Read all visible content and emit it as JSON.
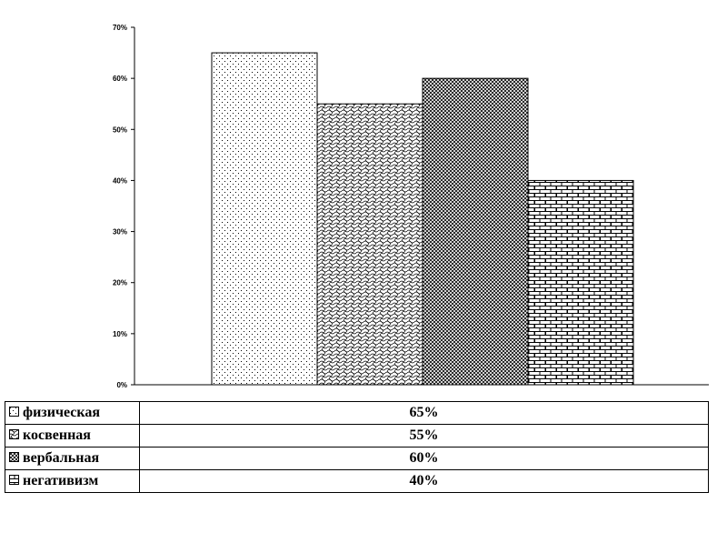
{
  "chart_data": {
    "type": "bar",
    "categories": [
      "физическая",
      "косвенная",
      "вербальная",
      "негативизм"
    ],
    "values": [
      65,
      55,
      60,
      40
    ],
    "value_labels": [
      "65%",
      "55%",
      "60%",
      "40%"
    ],
    "ylim": [
      0,
      70
    ],
    "yticks": [
      "0%",
      "10%",
      "20%",
      "30%",
      "40%",
      "50%",
      "60%",
      "70%"
    ],
    "grid": false,
    "legend": "data-table-below",
    "patterns": [
      "dots",
      "wave",
      "crosshatch",
      "brick"
    ]
  }
}
